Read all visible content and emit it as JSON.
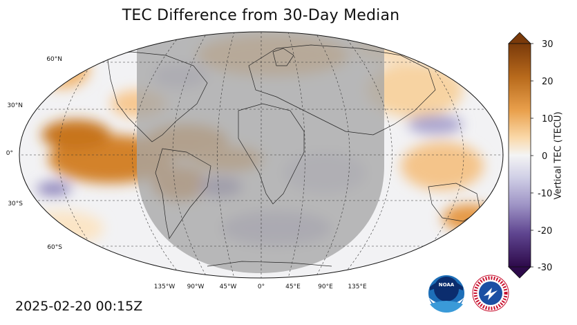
{
  "title": "TEC Difference from 30-Day Median",
  "timestamp": "2025-02-20 00:15Z",
  "lat_labels": [
    "60°N",
    "30°N",
    "0°",
    "30°S",
    "60°S"
  ],
  "lon_labels": [
    "135°W",
    "90°W",
    "45°W",
    "0°",
    "45°E",
    "90°E",
    "135°E"
  ],
  "colorbar": {
    "label": "Vertical TEC (TECU)",
    "ticks": [
      "30",
      "20",
      "10",
      "0",
      "-10",
      "-20",
      "-30"
    ],
    "min": -30,
    "max": 30
  },
  "colors": {
    "positive_strong": "#8a4a0e",
    "positive_mid": "#e3923a",
    "positive_weak": "#fbe0b8",
    "neutral": "#f4f4f4",
    "negative_weak": "#c9c8e2",
    "negative_mid": "#7a6aae",
    "negative_strong": "#2d0a4a",
    "daylight_shade": "#a8a8a8"
  },
  "logos": {
    "noaa": "NOAA",
    "nws": "NATIONAL WEATHER SERVICE"
  }
}
